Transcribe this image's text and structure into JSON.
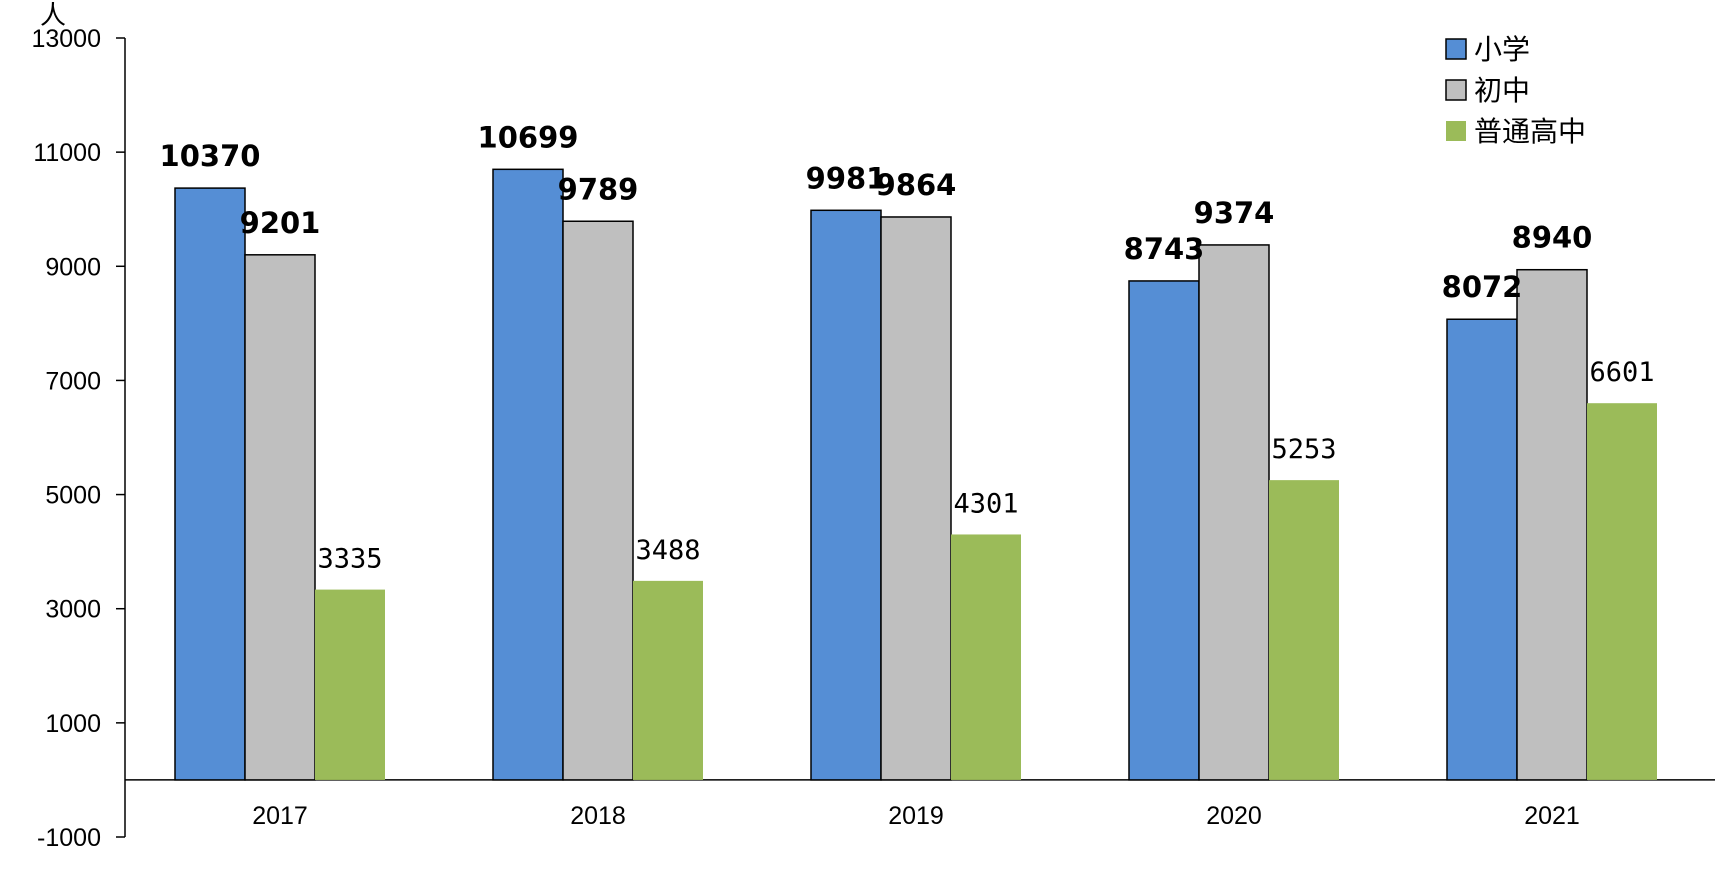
{
  "chart_data": {
    "type": "bar",
    "unit": "人",
    "categories": [
      "2017",
      "2018",
      "2019",
      "2020",
      "2021"
    ],
    "series": [
      {
        "name": "小学",
        "color": "#558ed5",
        "values": [
          10370,
          10699,
          9981,
          8743,
          8072
        ]
      },
      {
        "name": "初中",
        "color": "#bfbfbf",
        "values": [
          9201,
          9789,
          9864,
          9374,
          8940
        ]
      },
      {
        "name": "普通高中",
        "color": "#9bbb59",
        "values": [
          3335,
          3488,
          4301,
          5253,
          6601
        ]
      }
    ],
    "ylim": [
      -1000,
      13000
    ],
    "yticks": [
      -1000,
      1000,
      3000,
      5000,
      7000,
      9000,
      11000,
      13000
    ],
    "grid": false,
    "legend_position": "top-right"
  }
}
